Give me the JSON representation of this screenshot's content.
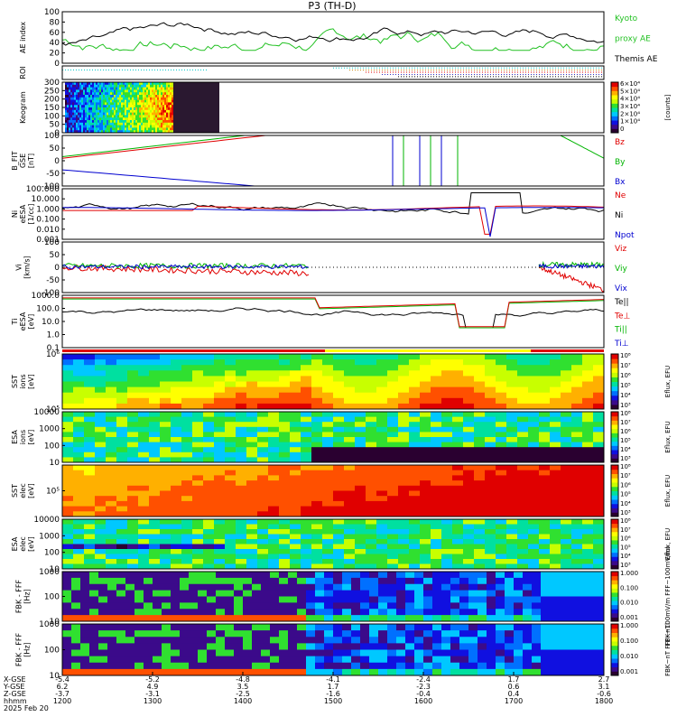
{
  "title": "P3 (TH-D)",
  "date_label": "2025 Feb 20",
  "colors": {
    "red": "#e00000",
    "green": "#00b400",
    "blue": "#0000d0",
    "black": "#000000",
    "kyoto": "#22c122",
    "cyan": "#00c8c8",
    "rainbow": [
      "#2a0030",
      "#3b0a8a",
      "#1010e0",
      "#0070ff",
      "#00c8ff",
      "#00e0a0",
      "#30e030",
      "#c8ff00",
      "#ffff00",
      "#ffb000",
      "#ff5000",
      "#e00000"
    ]
  },
  "time_axis": {
    "ticks": [
      "1200",
      "1300",
      "1400",
      "1500",
      "1600",
      "1700",
      "1800"
    ],
    "row_labels": [
      "X-GSE",
      "Y-GSE",
      "Z-GSE",
      "hhmm"
    ],
    "xgse": [
      "-5.4",
      "-5.2",
      "-4.8",
      "-4.1",
      "-2.4",
      "1.7",
      "2.7"
    ],
    "ygse": [
      "6.2",
      "4.9",
      "3.5",
      "1.7",
      "-2.3",
      "0.6",
      "3.1"
    ],
    "zgse": [
      "-3.7",
      "-3.1",
      "-2.5",
      "-1.6",
      "-0.4",
      "0.4",
      "-0.6"
    ]
  },
  "panels": [
    {
      "id": "ae",
      "ylabel": [
        "AE index"
      ],
      "ticks": [
        "100",
        "80",
        "60",
        "40",
        "20",
        "0"
      ],
      "legend": [
        {
          "text": "Kyoto",
          "color": "#22c122"
        },
        {
          "text": "proxy AE",
          "color": "#22c122"
        },
        {
          "text": "Themis AE",
          "color": "#000000"
        }
      ]
    },
    {
      "id": "roi",
      "ylabel": [
        "ROI"
      ],
      "ticks": [],
      "legend": []
    },
    {
      "id": "keogram",
      "ylabel": [
        "Keogram"
      ],
      "ticks": [
        "300",
        "250",
        "200",
        "150",
        "100",
        "50",
        "0"
      ],
      "colorbar": {
        "ticks": [
          "6×10⁴",
          "5×10⁴",
          "4×10⁴",
          "3×10⁴",
          "2×10⁴",
          "1×10⁴",
          "0"
        ],
        "label": "[counts]"
      },
      "legend": []
    },
    {
      "id": "bfield",
      "ylabel": [
        "B_FIT",
        "GSE",
        "[nT]"
      ],
      "ticks": [
        "100",
        "50",
        "0",
        "-50",
        "-100"
      ],
      "legend": [
        {
          "text": "Bz",
          "color": "#e00000"
        },
        {
          "text": "By",
          "color": "#00b400"
        },
        {
          "text": "Bx",
          "color": "#0000d0"
        }
      ]
    },
    {
      "id": "density",
      "ylabel": [
        "Ni",
        "eESA",
        "[1/cc]"
      ],
      "ticks": [
        "100.000",
        "10.000",
        "1.000",
        "0.100",
        "0.010",
        "0.001"
      ],
      "legend": [
        {
          "text": "Ne",
          "color": "#e00000"
        },
        {
          "text": "Ni",
          "color": "#000000"
        },
        {
          "text": "Npot",
          "color": "#0000d0"
        }
      ]
    },
    {
      "id": "velocity",
      "ylabel": [
        "Vi",
        "[km/s]"
      ],
      "ticks": [
        "100",
        "50",
        "0",
        "-50",
        "-100"
      ],
      "legend": [
        {
          "text": "Viz",
          "color": "#e00000"
        },
        {
          "text": "Viy",
          "color": "#00b400"
        },
        {
          "text": "Vix",
          "color": "#0000d0"
        }
      ]
    },
    {
      "id": "temperature",
      "ylabel": [
        "Ti",
        "eESA",
        "[eV]"
      ],
      "ticks": [
        "1000.0",
        "100.0",
        "10.0",
        "1.0",
        "0.1"
      ],
      "legend": [
        {
          "text": "Te||",
          "color": "#000000"
        },
        {
          "text": "Te⊥",
          "color": "#e00000"
        },
        {
          "text": "Ti||",
          "color": "#00b400"
        },
        {
          "text": "Ti⊥",
          "color": "#0000d0"
        }
      ]
    },
    {
      "id": "sst_ion",
      "ylabel": [
        "SST",
        "ions",
        "[eV]"
      ],
      "ticks": [
        "10⁶",
        "10⁵"
      ],
      "colorbar": {
        "ticks": [
          "10⁸",
          "10⁷",
          "10⁶",
          "10⁵",
          "10⁴",
          "10³"
        ],
        "label": "Eflux, EFU"
      },
      "legend": []
    },
    {
      "id": "esa_ion",
      "ylabel": [
        "ESA",
        "ions",
        "[eV]"
      ],
      "ticks": [
        "10000",
        "1000",
        "100",
        "10"
      ],
      "colorbar": {
        "ticks": [
          "10⁸",
          "10⁷",
          "10⁶",
          "10⁵",
          "10⁴",
          "10³"
        ],
        "label": "Eflux, EFU"
      },
      "legend": []
    },
    {
      "id": "sst_elec",
      "ylabel": [
        "SST",
        "elec",
        "[eV]"
      ],
      "ticks": [
        "10⁵"
      ],
      "colorbar": {
        "ticks": [
          "10⁸",
          "10⁷",
          "10⁶",
          "10⁵",
          "10⁴",
          "10³"
        ],
        "label": "Eflux, EFU"
      },
      "legend": []
    },
    {
      "id": "esa_elec",
      "ylabel": [
        "ESA",
        "elec",
        "[eV]"
      ],
      "ticks": [
        "10000",
        "1000",
        "100",
        "10"
      ],
      "colorbar": {
        "ticks": [
          "10⁸",
          "10⁷",
          "10⁶",
          "10⁵",
          "10⁴",
          "10³"
        ],
        "label": "Eflux, EFU"
      },
      "legend": []
    },
    {
      "id": "fbk_e",
      "ylabel": [
        "FBK - FFF",
        "[Hz]"
      ],
      "ticks": [
        "1000",
        "100",
        "10"
      ],
      "colorbar": {
        "ticks": [
          "1.000",
          "0.100",
          "0.010",
          "0.001"
        ],
        "label": "FBK~100mV/m   FFF~100mV/ml"
      },
      "legend": []
    },
    {
      "id": "fbk_b",
      "ylabel": [
        "FBK - FFF",
        "[Hz]"
      ],
      "ticks": [
        "1000",
        "100",
        "10"
      ],
      "colorbar": {
        "ticks": [
          "1.000",
          "0.100",
          "0.010",
          "0.001"
        ],
        "label": "FBK~nT   FFF~nTl"
      },
      "legend": []
    }
  ]
}
